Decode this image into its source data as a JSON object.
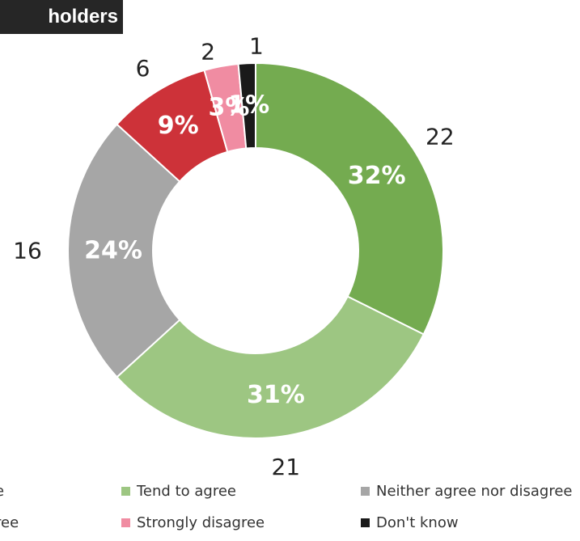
{
  "chart_data": {
    "type": "pie",
    "title": "holders",
    "donut": true,
    "slices": [
      {
        "name": "Strongly agree",
        "value": 22,
        "percent_label": "32%",
        "count_label": "22",
        "color": "#74ab50"
      },
      {
        "name": "Tend to agree",
        "value": 21,
        "percent_label": "31%",
        "count_label": "21",
        "color": "#9dc682"
      },
      {
        "name": "Neither agree nor disagree",
        "value": 16,
        "percent_label": "24%",
        "count_label": "16",
        "color": "#a6a6a6"
      },
      {
        "name": "Tend to disagree",
        "value": 6,
        "percent_label": "9%",
        "count_label": "6",
        "color": "#cd3239"
      },
      {
        "name": "Strongly disagree",
        "value": 2,
        "percent_label": "3%",
        "count_label": "2",
        "color": "#f08ca2"
      },
      {
        "name": "Don't know",
        "value": 1,
        "percent_label": "1%",
        "count_label": "1",
        "color": "#1a1a1a"
      }
    ],
    "legend": {
      "placement": "bottom",
      "entries": [
        {
          "label": "e",
          "color": "#74ab50",
          "swatch": false
        },
        {
          "label": "Tend to agree",
          "color": "#9dc682",
          "swatch": true
        },
        {
          "label": "Neither agree nor disagree",
          "color": "#a6a6a6",
          "swatch": true
        },
        {
          "label": "ree",
          "color": "#cd3239",
          "swatch": false
        },
        {
          "label": "Strongly disagree",
          "color": "#f08ca2",
          "swatch": true
        },
        {
          "label": "Don't know",
          "color": "#1a1a1a",
          "swatch": true
        }
      ]
    }
  }
}
